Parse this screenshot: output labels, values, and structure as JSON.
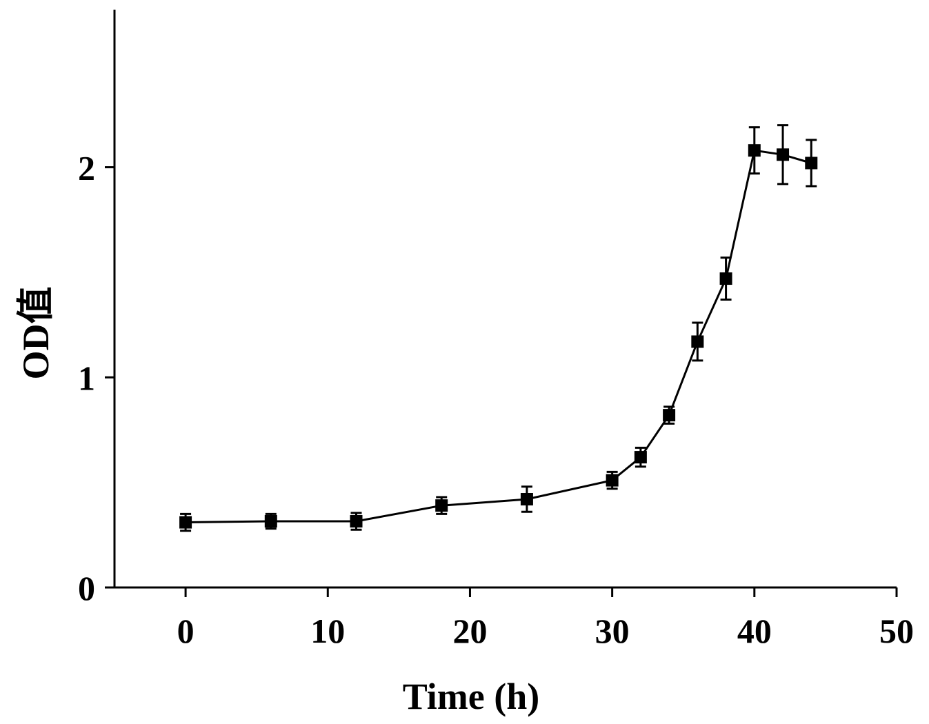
{
  "chart_data": {
    "type": "line",
    "title": "",
    "xlabel": "Time (h)",
    "ylabel": "OD值",
    "xlim": [
      -5,
      50
    ],
    "ylim": [
      0,
      2.75
    ],
    "x_ticks": [
      "0",
      "10",
      "20",
      "30",
      "40",
      "50"
    ],
    "y_ticks": [
      "0",
      "1",
      "2"
    ],
    "grid": false,
    "legend": "none",
    "series": [
      {
        "x": [
          0,
          6,
          12,
          18,
          24,
          30,
          32,
          34,
          36,
          38,
          40,
          42,
          44
        ],
        "y": [
          0.31,
          0.315,
          0.315,
          0.39,
          0.42,
          0.51,
          0.62,
          0.82,
          1.17,
          1.47,
          2.08,
          2.06,
          2.02
        ],
        "error": [
          0.04,
          0.035,
          0.04,
          0.04,
          0.06,
          0.04,
          0.045,
          0.04,
          0.09,
          0.1,
          0.11,
          0.14,
          0.11
        ]
      }
    ]
  }
}
